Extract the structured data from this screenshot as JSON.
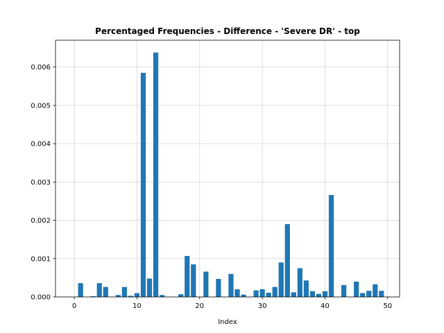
{
  "chart_data": {
    "type": "bar",
    "title": "Percentaged Frequencies - Difference - 'Severe DR' - top",
    "xlabel": "Index",
    "ylabel": "",
    "xlim": [
      -3.0,
      51.9
    ],
    "ylim": [
      0,
      0.0067
    ],
    "x_ticks": [
      0,
      10,
      20,
      30,
      40,
      50
    ],
    "y_ticks": [
      0.0,
      0.001,
      0.002,
      0.003,
      0.004,
      0.005,
      0.006
    ],
    "y_tick_labels": [
      "0.000",
      "0.001",
      "0.002",
      "0.003",
      "0.004",
      "0.005",
      "0.006"
    ],
    "grid": true,
    "bar_color": "#1f77b4",
    "x": [
      1,
      3,
      4,
      5,
      7,
      8,
      9,
      10,
      11,
      12,
      13,
      14,
      17,
      18,
      19,
      21,
      23,
      25,
      26,
      27,
      29,
      30,
      31,
      32,
      33,
      34,
      35,
      36,
      37,
      38,
      39,
      40,
      41,
      43,
      45,
      46,
      47,
      48,
      49
    ],
    "values": [
      0.00036,
      2e-05,
      0.00036,
      0.00026,
      5e-05,
      0.00026,
      3e-05,
      0.0001,
      0.00585,
      0.00048,
      0.00638,
      5e-05,
      7e-05,
      0.00107,
      0.00085,
      0.00066,
      0.00047,
      0.0006,
      0.0002,
      6e-05,
      0.00017,
      0.0002,
      0.00011,
      0.00026,
      0.0009,
      0.0019,
      0.00012,
      0.00075,
      0.00043,
      0.00015,
      8e-05,
      0.00015,
      0.00266,
      0.00031,
      0.0004,
      0.0001,
      0.00016,
      0.00033,
      0.00016
    ]
  }
}
